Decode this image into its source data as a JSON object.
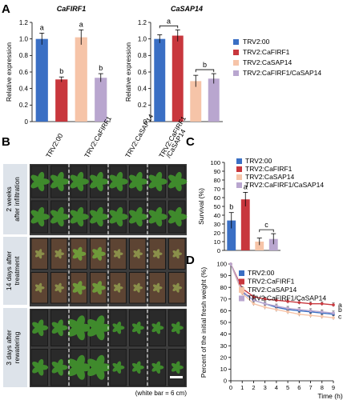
{
  "panel_letters": {
    "a": "A",
    "b": "B",
    "c": "C",
    "d": "D"
  },
  "colors": {
    "trv00": "#3a6fc4",
    "firf1": "#c8373d",
    "sap14": "#f6c4a8",
    "double": "#b9a6cf",
    "plant_bg": "#3b3b3b",
    "label_bg": "#dde3ea",
    "soil": "#5d4433",
    "leaf": "#3f8a2c"
  },
  "legend": {
    "items": [
      "TRV2:00",
      "TRV2:CaFIRF1",
      "TRV2:CaSAP14",
      "TRV2:CaFIRF1/CaSAP14"
    ]
  },
  "photo": {
    "columns": [
      "TRV2:00",
      "TRV2:CaFIRF1",
      "TRV2:CaSAP14",
      "TRV2:CaFIRF1\n/CaSAP14"
    ],
    "rows": [
      "2 weeks\nafter infiltration",
      "14 days after\ntreatment",
      "3 days after\nrewatering"
    ],
    "scale_caption": "(white bar = 6 cm)"
  },
  "chart_data": [
    {
      "id": "A1",
      "type": "bar",
      "title": "CaFIRF1",
      "ylabel": "Relative expression",
      "categories": [
        "TRV2:00",
        "TRV2:CaFIRF1",
        "TRV2:CaSAP14",
        "TRV2:CaFIRF1/CaSAP14"
      ],
      "values": [
        1.0,
        0.51,
        1.02,
        0.53
      ],
      "errors": [
        0.07,
        0.03,
        0.09,
        0.05
      ],
      "letters": [
        "a",
        "b",
        "a",
        "b"
      ],
      "ylim": [
        0,
        1.2
      ],
      "yticks": [
        "0",
        "0.2",
        "0.4",
        "0.6",
        "0.8",
        "1.0",
        "1.2"
      ]
    },
    {
      "id": "A2",
      "type": "bar",
      "title": "CaSAP14",
      "ylabel": "Relative expression",
      "categories": [
        "TRV2:00",
        "TRV2:CaFIRF1",
        "TRV2:CaSAP14",
        "TRV2:CaFIRF1/CaSAP14"
      ],
      "values": [
        1.0,
        1.04,
        0.49,
        0.52
      ],
      "errors": [
        0.05,
        0.07,
        0.07,
        0.06
      ],
      "group_letters": [
        {
          "from": 0,
          "to": 1,
          "letter": "a"
        },
        {
          "from": 2,
          "to": 3,
          "letter": "b"
        }
      ],
      "ylim": [
        0,
        1.2
      ],
      "yticks": [
        "0",
        "0.2",
        "0.4",
        "0.6",
        "0.8",
        "1.0",
        "1.2"
      ]
    },
    {
      "id": "C",
      "type": "bar",
      "ylabel": "Survival (%)",
      "categories": [
        "TRV2:00",
        "TRV2:CaFIRF1",
        "TRV2:CaSAP14",
        "TRV2:CaFIRF1/CaSAP14"
      ],
      "values": [
        34,
        58,
        10,
        13
      ],
      "errors": [
        9,
        8,
        4,
        6
      ],
      "letters": [
        "b",
        "a",
        "",
        ""
      ],
      "group_letters": [
        {
          "from": 2,
          "to": 3,
          "letter": "c"
        }
      ],
      "ylim": [
        0,
        100
      ],
      "yticks": [
        "0",
        "10",
        "20",
        "30",
        "40",
        "50",
        "60",
        "70",
        "80",
        "90",
        "100"
      ]
    },
    {
      "id": "D",
      "type": "line",
      "ylabel": "Percent of the initial fresh weight (%)",
      "xlabel": "Time (h)",
      "x": [
        0,
        1,
        2,
        3,
        4,
        5,
        6,
        7,
        8,
        9
      ],
      "series": [
        {
          "name": "TRV2:00",
          "values": [
            100,
            76,
            69,
            66,
            63,
            61,
            60,
            59,
            58,
            57
          ]
        },
        {
          "name": "TRV2:CaFIRF1",
          "values": [
            100,
            79,
            72,
            70,
            69,
            68,
            67,
            66,
            66,
            65
          ]
        },
        {
          "name": "TRV2:CaSAP14",
          "values": [
            100,
            75,
            66,
            63,
            61,
            59,
            57,
            56,
            55,
            54
          ]
        },
        {
          "name": "TRV2:CaFIRF1/CaSAP14",
          "values": [
            100,
            77,
            69,
            66,
            64,
            62,
            61,
            60,
            59,
            58
          ]
        }
      ],
      "end_letters": [
        "a",
        "b",
        "c"
      ],
      "xlim": [
        0,
        9
      ],
      "ylim": [
        0,
        100
      ],
      "xticks": [
        "0",
        "1",
        "2",
        "3",
        "4",
        "5",
        "6",
        "7",
        "8",
        "9"
      ],
      "yticks": [
        "0",
        "10",
        "20",
        "30",
        "40",
        "50",
        "60",
        "70",
        "80",
        "90",
        "100"
      ]
    }
  ]
}
